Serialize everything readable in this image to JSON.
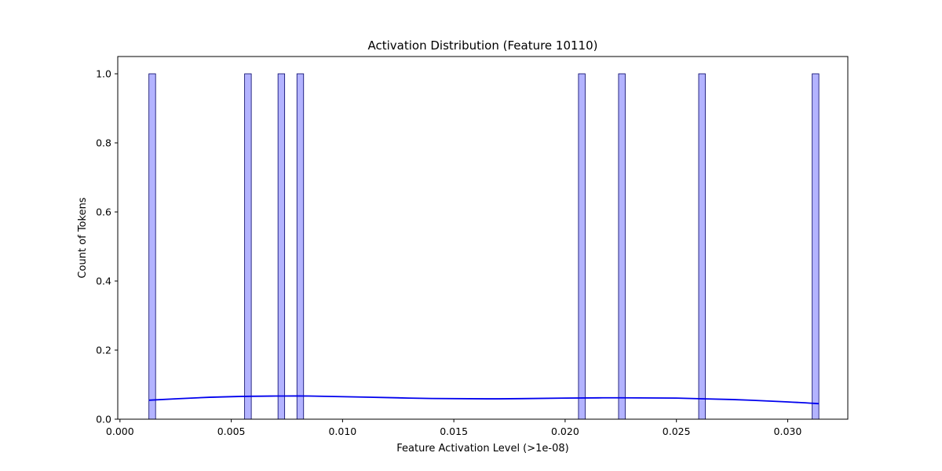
{
  "chart_data": {
    "type": "bar",
    "title": "Activation Distribution (Feature 10110)",
    "xlabel": "Feature Activation Level (>1e-08)",
    "ylabel": "Count of Tokens",
    "xlim": [
      -0.0001,
      0.0327
    ],
    "ylim": [
      0,
      1.05
    ],
    "xticks": [
      "0.000",
      "0.005",
      "0.010",
      "0.015",
      "0.020",
      "0.025",
      "0.030"
    ],
    "xtick_values": [
      0.0,
      0.005,
      0.01,
      0.015,
      0.02,
      0.025,
      0.03
    ],
    "yticks": [
      "0.0",
      "0.2",
      "0.4",
      "0.6",
      "0.8",
      "1.0"
    ],
    "ytick_values": [
      0.0,
      0.2,
      0.4,
      0.6,
      0.8,
      1.0
    ],
    "bin_width": 0.0003,
    "bars": [
      {
        "x": 0.00145,
        "count": 1
      },
      {
        "x": 0.00575,
        "count": 1
      },
      {
        "x": 0.00725,
        "count": 1
      },
      {
        "x": 0.0081,
        "count": 1
      },
      {
        "x": 0.02075,
        "count": 1
      },
      {
        "x": 0.02255,
        "count": 1
      },
      {
        "x": 0.02615,
        "count": 1
      },
      {
        "x": 0.03125,
        "count": 1
      }
    ],
    "kde": {
      "x": [
        0.0013,
        0.0035,
        0.0055,
        0.007,
        0.0085,
        0.011,
        0.014,
        0.017,
        0.02,
        0.0225,
        0.025,
        0.0275,
        0.03,
        0.0314
      ],
      "y": [
        0.055,
        0.062,
        0.066,
        0.067,
        0.067,
        0.064,
        0.06,
        0.059,
        0.061,
        0.062,
        0.061,
        0.057,
        0.05,
        0.045
      ]
    },
    "colors": {
      "bar_fill": "#b3b3ff",
      "bar_edge": "#000066",
      "kde_line": "#0000ee"
    },
    "grid": false,
    "legend": "none"
  }
}
